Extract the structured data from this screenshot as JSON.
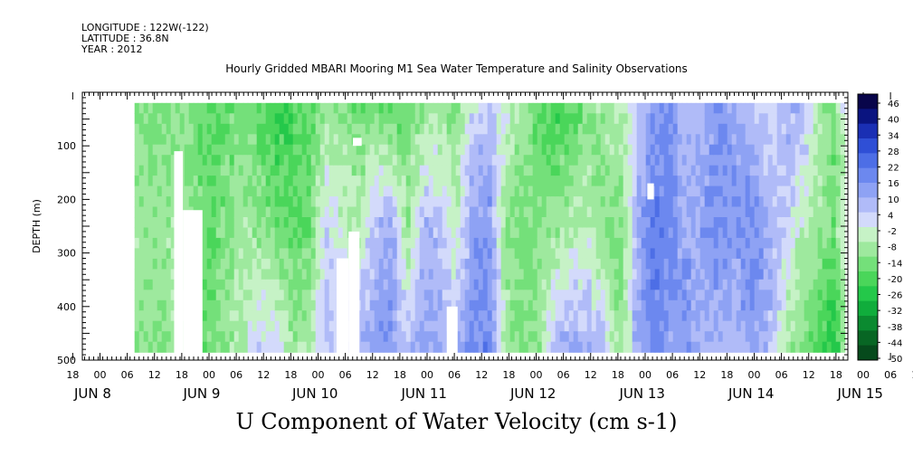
{
  "header": {
    "longitude": "LONGITUDE : 122W(-122)",
    "latitude": "LATITUDE : 36.8N",
    "year": "YEAR : 2012",
    "title": "Hourly Gridded MBARI Mooring M1 Sea Water Temperature and Salinity Observations"
  },
  "chart_data": {
    "type": "heatmap",
    "title": "U Component of Water Velocity (cm s-1)",
    "ylabel": "DEPTH (m)",
    "ylim": [
      500,
      0
    ],
    "y_inverted": true,
    "y_ticks": [
      100,
      200,
      300,
      400,
      500
    ],
    "data_depth_range": [
      20,
      485
    ],
    "x_hour_ticks": [
      "18",
      "00",
      "06",
      "12",
      "18",
      "00",
      "06",
      "12",
      "18",
      "00",
      "06",
      "12",
      "18",
      "00",
      "06",
      "12",
      "18",
      "00",
      "06",
      "12",
      "18",
      "00",
      "06",
      "12",
      "18",
      "00",
      "06",
      "12",
      "18",
      "00",
      "06",
      "12"
    ],
    "x_day_labels": [
      "JUN  8",
      "JUN  9",
      "JUN 10",
      "JUN 11",
      "JUN 12",
      "JUN 13",
      "JUN 14",
      "JUN 15"
    ],
    "colorbar": {
      "levels": [
        "46",
        "40",
        "34",
        "28",
        "22",
        "16",
        "10",
        "4",
        "-2",
        "-8",
        "-14",
        "-20",
        "-26",
        "-32",
        "-38",
        "-44",
        "-50"
      ],
      "min": -50,
      "max": 50,
      "colors": [
        "#08054a",
        "#0a1480",
        "#1a2fb4",
        "#2f4fd6",
        "#4d6ee6",
        "#6c88ef",
        "#8ea2f4",
        "#b0bbf8",
        "#d3dafb",
        "#c6f2c6",
        "#9ee99e",
        "#74e07a",
        "#4ad65a",
        "#24c84a",
        "#10ad3c",
        "#0b8a30",
        "#086624",
        "#064a1c"
      ]
    },
    "columns": [
      {
        "day_offset": 0.4,
        "top": 12,
        "mid": 8,
        "bot": 10
      },
      {
        "day_offset": 0.55,
        "top": 14,
        "mid": 10,
        "bot": 12
      },
      {
        "day_offset": 0.7,
        "top": 10,
        "mid": 6,
        "bot": 4
      },
      {
        "day_offset": 0.85,
        "top": 14,
        "mid": 12,
        "bot": 16
      },
      {
        "day_offset": 1.0,
        "top": 18,
        "mid": 16,
        "bot": 14
      },
      {
        "day_offset": 1.15,
        "top": 16,
        "mid": 12,
        "bot": 8
      },
      {
        "day_offset": 1.3,
        "top": 12,
        "mid": 8,
        "bot": 4
      },
      {
        "day_offset": 1.45,
        "top": 18,
        "mid": 10,
        "bot": -4
      },
      {
        "day_offset": 1.6,
        "top": 22,
        "mid": 14,
        "bot": -2
      },
      {
        "day_offset": 1.75,
        "top": 20,
        "mid": 16,
        "bot": 8
      },
      {
        "day_offset": 1.9,
        "top": 18,
        "mid": 14,
        "bot": 6
      },
      {
        "day_offset": 2.05,
        "top": 10,
        "mid": -4,
        "bot": -8
      },
      {
        "day_offset": 2.2,
        "top": 12,
        "mid": 2,
        "bot": -6
      },
      {
        "day_offset": 2.35,
        "top": 14,
        "mid": 6,
        "bot": -10
      },
      {
        "day_offset": 2.5,
        "top": 16,
        "mid": -8,
        "bot": -14
      },
      {
        "day_offset": 2.65,
        "top": 18,
        "mid": -12,
        "bot": -16
      },
      {
        "day_offset": 2.8,
        "top": 14,
        "mid": 10,
        "bot": -6
      },
      {
        "day_offset": 2.95,
        "top": 10,
        "mid": -10,
        "bot": -14
      },
      {
        "day_offset": 3.1,
        "top": 8,
        "mid": -6,
        "bot": -10
      },
      {
        "day_offset": 3.25,
        "top": 12,
        "mid": 4,
        "bot": -8
      },
      {
        "day_offset": 3.4,
        "top": -2,
        "mid": -14,
        "bot": -18
      },
      {
        "day_offset": 3.55,
        "top": -6,
        "mid": -16,
        "bot": -20
      },
      {
        "day_offset": 3.7,
        "top": 2,
        "mid": 10,
        "bot": 6
      },
      {
        "day_offset": 3.85,
        "top": 8,
        "mid": 14,
        "bot": 12
      },
      {
        "day_offset": 4.0,
        "top": 16,
        "mid": 12,
        "bot": 10
      },
      {
        "day_offset": 4.15,
        "top": 20,
        "mid": 10,
        "bot": -8
      },
      {
        "day_offset": 4.3,
        "top": 18,
        "mid": 6,
        "bot": -12
      },
      {
        "day_offset": 4.45,
        "top": 12,
        "mid": 4,
        "bot": -10
      },
      {
        "day_offset": 4.6,
        "top": 8,
        "mid": 12,
        "bot": -6
      },
      {
        "day_offset": 4.75,
        "top": 4,
        "mid": 14,
        "bot": 10
      },
      {
        "day_offset": 4.9,
        "top": -4,
        "mid": -10,
        "bot": -12
      },
      {
        "day_offset": 5.05,
        "top": -14,
        "mid": -22,
        "bot": -18
      },
      {
        "day_offset": 5.2,
        "top": -18,
        "mid": -20,
        "bot": -14
      },
      {
        "day_offset": 5.35,
        "top": -6,
        "mid": -12,
        "bot": -16
      },
      {
        "day_offset": 5.5,
        "top": -10,
        "mid": -14,
        "bot": -8
      },
      {
        "day_offset": 5.65,
        "top": -16,
        "mid": -18,
        "bot": -10
      },
      {
        "day_offset": 5.8,
        "top": -12,
        "mid": -16,
        "bot": -8
      },
      {
        "day_offset": 5.95,
        "top": -8,
        "mid": -18,
        "bot": -14
      },
      {
        "day_offset": 6.1,
        "top": -2,
        "mid": -12,
        "bot": -10
      },
      {
        "day_offset": 6.25,
        "top": -8,
        "mid": -6,
        "bot": 4
      },
      {
        "day_offset": 6.4,
        "top": -12,
        "mid": 4,
        "bot": 12
      },
      {
        "day_offset": 6.55,
        "top": 4,
        "mid": 8,
        "bot": 16
      },
      {
        "day_offset": 6.7,
        "top": 16,
        "mid": 14,
        "bot": 28
      },
      {
        "day_offset": 6.85,
        "top": -6,
        "mid": -4,
        "bot": 2
      },
      {
        "day_offset": 7.0,
        "top": -8,
        "mid": -10,
        "bot": -2
      },
      {
        "day_offset": 7.15,
        "top": -4,
        "mid": -8,
        "bot": 2
      },
      {
        "day_offset": 7.3,
        "top": -2,
        "mid": -4,
        "bot": 6
      }
    ],
    "gaps": [
      {
        "day_start": 0.2,
        "day_end": 0.3,
        "depth_top": 20,
        "depth_bottom": 500
      },
      {
        "day_start": 0.68,
        "day_end": 0.76,
        "depth_top": 110,
        "depth_bottom": 500
      },
      {
        "day_start": 0.76,
        "day_end": 0.94,
        "depth_top": 220,
        "depth_bottom": 500
      },
      {
        "day_start": 2.17,
        "day_end": 2.28,
        "depth_top": 310,
        "depth_bottom": 500
      },
      {
        "day_start": 2.28,
        "day_end": 2.38,
        "depth_top": 260,
        "depth_bottom": 500
      },
      {
        "day_start": 3.18,
        "day_end": 3.28,
        "depth_top": 400,
        "depth_bottom": 500
      },
      {
        "day_start": 5.02,
        "day_end": 5.08,
        "depth_top": 170,
        "depth_bottom": 200
      },
      {
        "day_start": 2.32,
        "day_end": 2.4,
        "depth_top": 85,
        "depth_bottom": 100
      }
    ]
  }
}
